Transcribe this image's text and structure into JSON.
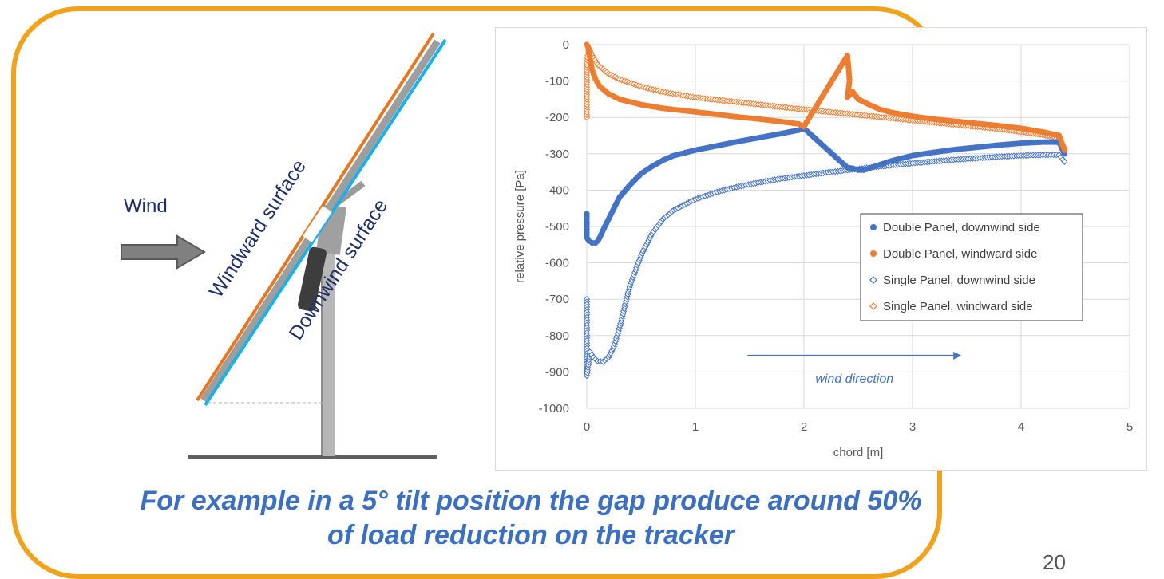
{
  "slide": {
    "caption_line1": "For example in a 5° tilt position the gap produce around 50%",
    "caption_line2": "of load reduction on the tracker",
    "page_number": "20",
    "frame_color": "#f0a21a",
    "caption_color": "#3a6fc4"
  },
  "diagram": {
    "wind_label": "Wind",
    "windward_label": "Windward surface",
    "downwind_label": "Downwind surface",
    "windward_color": "#e87722",
    "downwind_color": "#1ab0e8",
    "arrow_color": "#808080"
  },
  "chart_data": {
    "type": "scatter",
    "xlabel": "chord [m]",
    "ylabel": "relative pressure [Pa]",
    "xlim": [
      0,
      5
    ],
    "ylim": [
      -1000,
      0
    ],
    "xticks": [
      0,
      1,
      2,
      3,
      4,
      5
    ],
    "yticks": [
      0,
      -100,
      -200,
      -300,
      -400,
      -500,
      -600,
      -700,
      -800,
      -900,
      -1000
    ],
    "grid": true,
    "legend_position": "right",
    "annotation": "wind direction",
    "annotation_color": "#4472c4",
    "series": [
      {
        "name": "Double Panel, downwind side",
        "marker": "filled-circle",
        "color": "#4472c4",
        "points": [
          [
            0,
            -465
          ],
          [
            0,
            -530
          ],
          [
            0.02,
            -540
          ],
          [
            0.05,
            -545
          ],
          [
            0.08,
            -545
          ],
          [
            0.1,
            -540
          ],
          [
            0.12,
            -530
          ],
          [
            0.15,
            -510
          ],
          [
            0.2,
            -480
          ],
          [
            0.25,
            -450
          ],
          [
            0.3,
            -420
          ],
          [
            0.4,
            -385
          ],
          [
            0.5,
            -355
          ],
          [
            0.6,
            -335
          ],
          [
            0.7,
            -318
          ],
          [
            0.8,
            -305
          ],
          [
            1.0,
            -290
          ],
          [
            1.2,
            -278
          ],
          [
            1.4,
            -266
          ],
          [
            1.6,
            -255
          ],
          [
            1.8,
            -244
          ],
          [
            1.95,
            -235
          ],
          [
            2.0,
            -230
          ],
          [
            2.4,
            -338
          ],
          [
            2.45,
            -340
          ],
          [
            2.5,
            -345
          ],
          [
            2.55,
            -345
          ],
          [
            2.6,
            -340
          ],
          [
            2.7,
            -330
          ],
          [
            2.8,
            -320
          ],
          [
            3.0,
            -305
          ],
          [
            3.2,
            -296
          ],
          [
            3.4,
            -288
          ],
          [
            3.6,
            -282
          ],
          [
            3.8,
            -276
          ],
          [
            4.0,
            -271
          ],
          [
            4.2,
            -268
          ],
          [
            4.35,
            -268
          ],
          [
            4.4,
            -300
          ]
        ]
      },
      {
        "name": "Double Panel, windward side",
        "marker": "filled-circle",
        "color": "#ed7d31",
        "points": [
          [
            0,
            0
          ],
          [
            0.01,
            -5
          ],
          [
            0.02,
            -20
          ],
          [
            0.03,
            -40
          ],
          [
            0.05,
            -70
          ],
          [
            0.08,
            -95
          ],
          [
            0.12,
            -115
          ],
          [
            0.2,
            -135
          ],
          [
            0.3,
            -150
          ],
          [
            0.5,
            -165
          ],
          [
            0.7,
            -175
          ],
          [
            1.0,
            -185
          ],
          [
            1.2,
            -192
          ],
          [
            1.4,
            -199
          ],
          [
            1.6,
            -205
          ],
          [
            1.8,
            -212
          ],
          [
            1.95,
            -218
          ],
          [
            2.0,
            -225
          ],
          [
            2.4,
            -30
          ],
          [
            2.41,
            -60
          ],
          [
            2.42,
            -100
          ],
          [
            2.4,
            -145
          ],
          [
            2.45,
            -130
          ],
          [
            2.5,
            -150
          ],
          [
            2.6,
            -165
          ],
          [
            2.7,
            -178
          ],
          [
            2.8,
            -186
          ],
          [
            3.0,
            -197
          ],
          [
            3.2,
            -205
          ],
          [
            3.4,
            -211
          ],
          [
            3.6,
            -217
          ],
          [
            3.8,
            -223
          ],
          [
            4.0,
            -230
          ],
          [
            4.2,
            -240
          ],
          [
            4.35,
            -250
          ],
          [
            4.4,
            -290
          ]
        ]
      },
      {
        "name": "Single Panel, downwind side",
        "marker": "open-diamond",
        "color": "#4472c4",
        "points": [
          [
            0,
            -700
          ],
          [
            0,
            -835
          ],
          [
            0,
            -910
          ],
          [
            0.03,
            -845
          ],
          [
            0.06,
            -860
          ],
          [
            0.1,
            -870
          ],
          [
            0.15,
            -872
          ],
          [
            0.2,
            -860
          ],
          [
            0.25,
            -830
          ],
          [
            0.3,
            -780
          ],
          [
            0.35,
            -720
          ],
          [
            0.4,
            -660
          ],
          [
            0.5,
            -580
          ],
          [
            0.6,
            -520
          ],
          [
            0.7,
            -480
          ],
          [
            0.8,
            -455
          ],
          [
            1.0,
            -425
          ],
          [
            1.2,
            -405
          ],
          [
            1.4,
            -390
          ],
          [
            1.6,
            -378
          ],
          [
            1.8,
            -368
          ],
          [
            2.0,
            -360
          ],
          [
            2.2,
            -352
          ],
          [
            2.4,
            -345
          ],
          [
            2.6,
            -338
          ],
          [
            2.8,
            -332
          ],
          [
            3.0,
            -326
          ],
          [
            3.2,
            -321
          ],
          [
            3.4,
            -316
          ],
          [
            3.6,
            -312
          ],
          [
            3.8,
            -308
          ],
          [
            4.0,
            -305
          ],
          [
            4.2,
            -303
          ],
          [
            4.35,
            -303
          ],
          [
            4.4,
            -322
          ]
        ]
      },
      {
        "name": "Single Panel, windward side",
        "marker": "open-diamond",
        "color": "#ed7d31",
        "points": [
          [
            0,
            -200
          ],
          [
            0,
            -130
          ],
          [
            0,
            -90
          ],
          [
            0,
            -50
          ],
          [
            0.02,
            -10
          ],
          [
            0.05,
            -30
          ],
          [
            0.1,
            -55
          ],
          [
            0.2,
            -80
          ],
          [
            0.3,
            -95
          ],
          [
            0.5,
            -115
          ],
          [
            0.7,
            -130
          ],
          [
            1.0,
            -145
          ],
          [
            1.2,
            -152
          ],
          [
            1.4,
            -158
          ],
          [
            1.6,
            -165
          ],
          [
            1.8,
            -172
          ],
          [
            2.0,
            -178
          ],
          [
            2.2,
            -184
          ],
          [
            2.4,
            -190
          ],
          [
            2.6,
            -196
          ],
          [
            2.8,
            -202
          ],
          [
            3.0,
            -208
          ],
          [
            3.2,
            -214
          ],
          [
            3.4,
            -220
          ],
          [
            3.6,
            -226
          ],
          [
            3.8,
            -232
          ],
          [
            4.0,
            -240
          ],
          [
            4.2,
            -248
          ],
          [
            4.35,
            -258
          ],
          [
            4.4,
            -285
          ]
        ]
      }
    ]
  }
}
